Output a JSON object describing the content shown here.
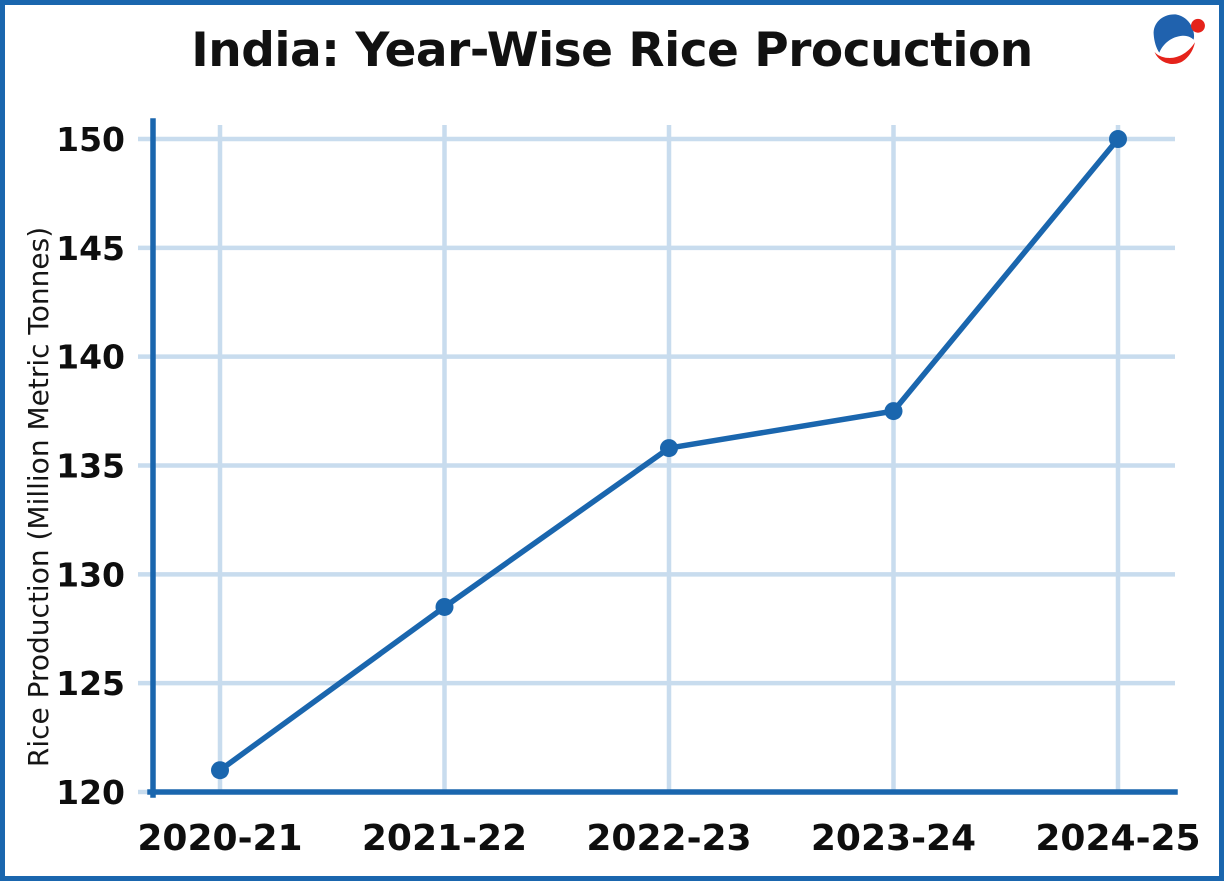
{
  "header": {
    "title": "India: Year-Wise Rice Procuction"
  },
  "logo": {
    "name": "brand-logo",
    "blue": "#2062ae",
    "red": "#e5231b"
  },
  "chart_data": {
    "type": "line",
    "title": "India: Year-Wise Rice Procuction",
    "categories": [
      "2020-21",
      "2021-22",
      "2022-23",
      "2023-24",
      "2024-25"
    ],
    "series": [
      {
        "name": "Rice Production",
        "color": "#1a66ae",
        "values": [
          121,
          128.5,
          135.8,
          137.5,
          150
        ]
      }
    ],
    "xlabel": "",
    "ylabel": "Rice Production (Million Metric Tonnes)",
    "ylim": [
      120,
      150
    ],
    "ytick_step": 5,
    "yticks": [
      120,
      125,
      130,
      135,
      140,
      145,
      150
    ],
    "grid": true,
    "legend": "none",
    "marker": "circle",
    "colors": {
      "line": "#1a66ae",
      "axis": "#1a66ae",
      "grid": "#c8dcee",
      "text": "#0e0e0e",
      "border": "#1a66ae",
      "background": "#ffffff"
    }
  }
}
